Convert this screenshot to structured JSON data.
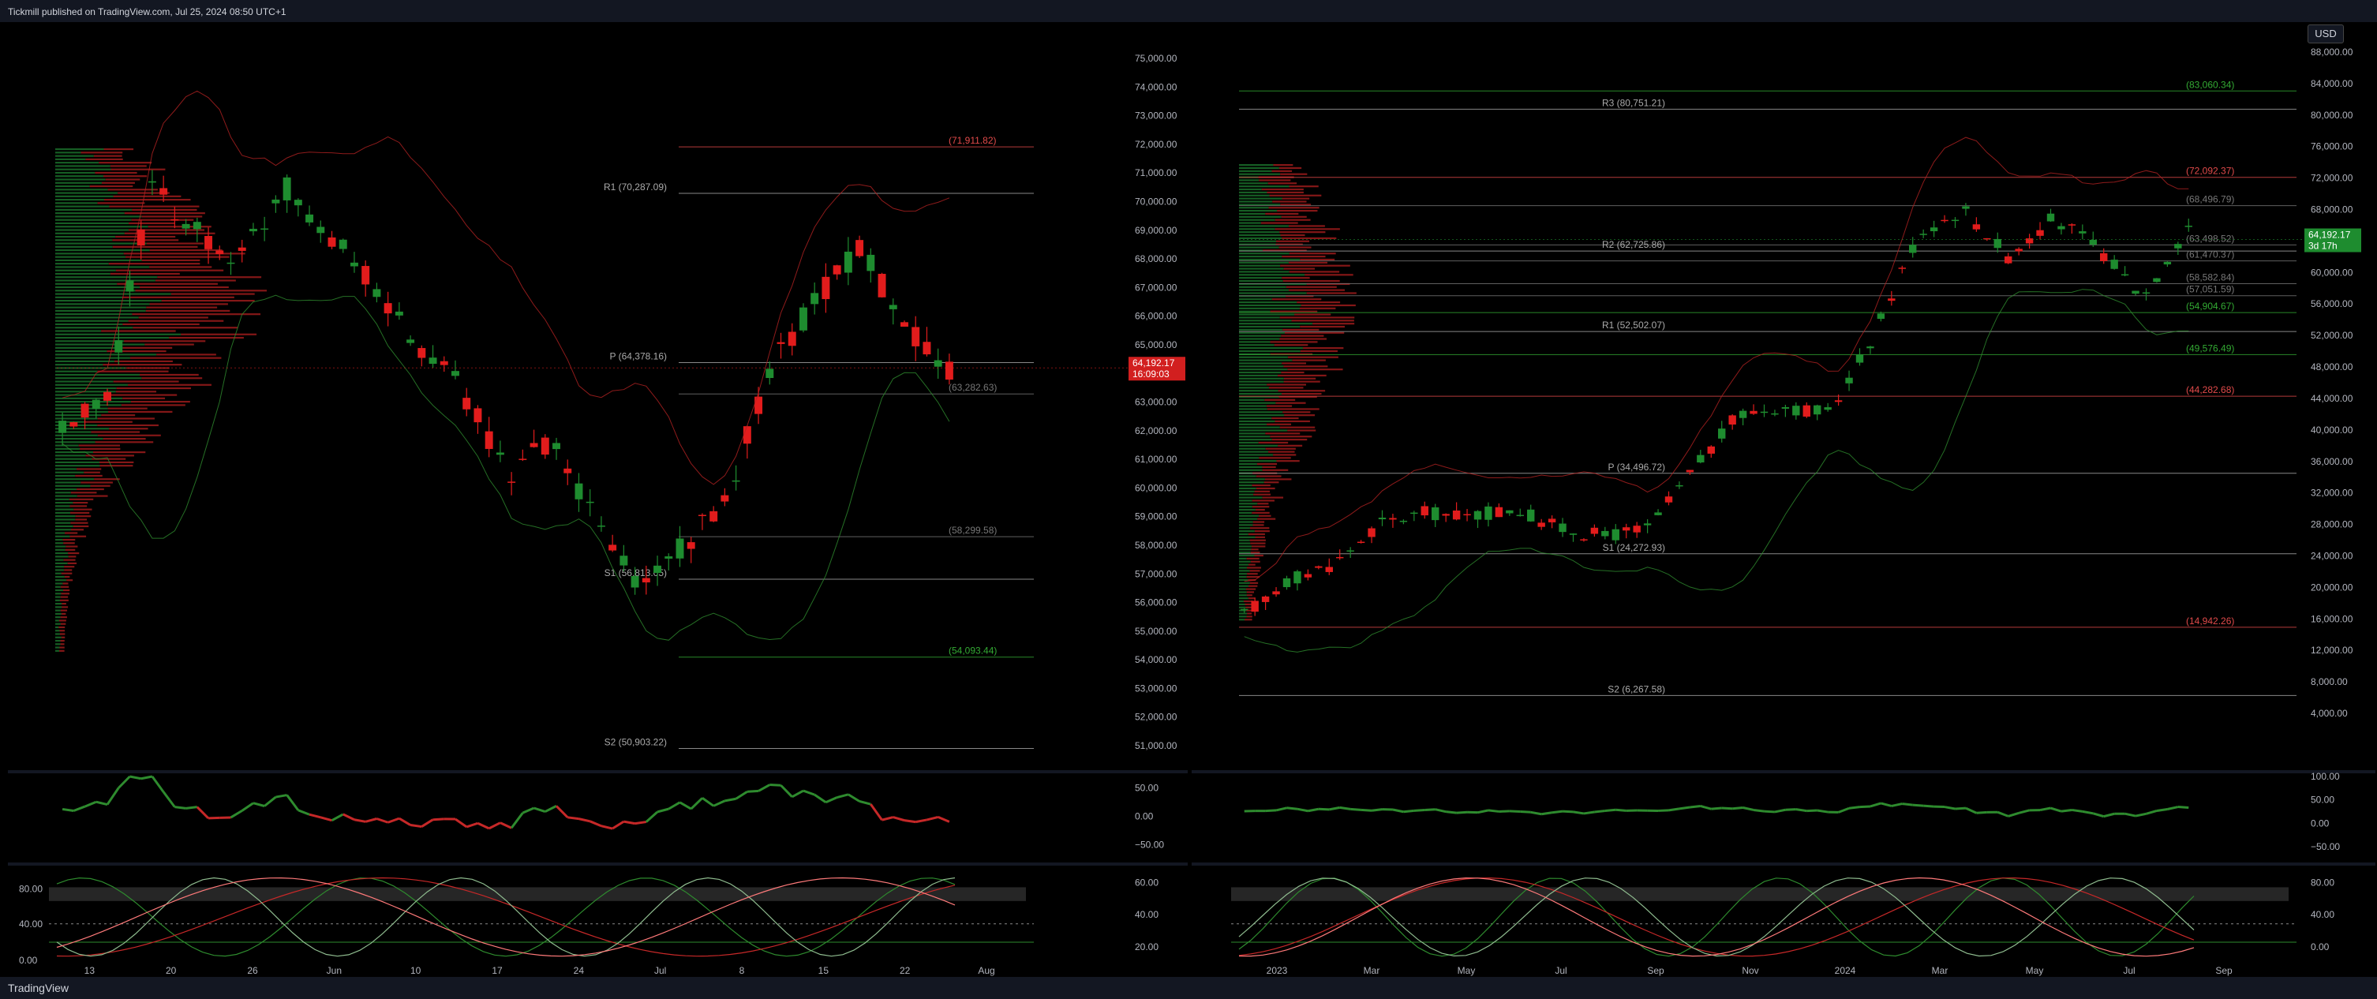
{
  "header": {
    "text": "Tickmill published on TradingView.com, Jul 25, 2024 08:50 UTC+1"
  },
  "footer": {
    "brand": "TradingView"
  },
  "currency_button": "USD",
  "colors": {
    "up": "#1e8c2f",
    "down": "#e21c1c",
    "bg": "#000000",
    "grid": "#1a1a1a",
    "axis_text": "#b2b5be"
  },
  "left": {
    "price_axis": [
      "75,000.00",
      "74,000.00",
      "73,000.00",
      "72,000.00",
      "71,000.00",
      "70,000.00",
      "69,000.00",
      "68,000.00",
      "67,000.00",
      "66,000.00",
      "65,000.00",
      "64,000.00",
      "63,000.00",
      "62,000.00",
      "61,000.00",
      "60,000.00",
      "59,000.00",
      "58,000.00",
      "57,000.00",
      "56,000.00",
      "55,000.00",
      "54,000.00",
      "53,000.00",
      "52,000.00",
      "51,000.00"
    ],
    "last_price": "64,192.17",
    "countdown": "16:09:03",
    "levels": [
      {
        "label": "(71,911.82)",
        "price": 71911.82,
        "color": "#e24a4a"
      },
      {
        "label": "R1 (70,287.09)",
        "price": 70287.09,
        "color": "#aaaaaa"
      },
      {
        "label": "P (64,378.16)",
        "price": 64378.16,
        "color": "#aaaaaa"
      },
      {
        "label": "(63,282.63)",
        "price": 63282.63,
        "color": "#777777"
      },
      {
        "label": "(58,299.58)",
        "price": 58299.58,
        "color": "#777777"
      },
      {
        "label": "S1 (56,813.05)",
        "price": 56813.05,
        "color": "#aaaaaa"
      },
      {
        "label": "(54,093.44)",
        "price": 54093.44,
        "color": "#33aa33"
      },
      {
        "label": "S2 (50,903.22)",
        "price": 50903.22,
        "color": "#aaaaaa"
      }
    ],
    "x_axis": [
      "13",
      "20",
      "26",
      "Jun",
      "10",
      "17",
      "24",
      "Jul",
      "8",
      "15",
      "22",
      "Aug"
    ],
    "rsi_axis": [
      "50.00",
      "0.00",
      "−50.00"
    ],
    "stoch_left_axis": [
      "80.00",
      "40.00",
      "0.00"
    ],
    "stoch_right_axis": [
      "60.00",
      "40.00",
      "20.00"
    ]
  },
  "right": {
    "price_axis": [
      "88,000.00",
      "84,000.00",
      "80,000.00",
      "76,000.00",
      "72,000.00",
      "68,000.00",
      "64,000.00",
      "60,000.00",
      "56,000.00",
      "52,000.00",
      "48,000.00",
      "44,000.00",
      "40,000.00",
      "36,000.00",
      "32,000.00",
      "28,000.00",
      "24,000.00",
      "20,000.00",
      "16,000.00",
      "12,000.00",
      "8,000.00",
      "4,000.00"
    ],
    "last_price": "64,192.17",
    "countdown": "3d 17h",
    "levels": [
      {
        "label": "(83,060.34)",
        "price": 83060.34,
        "color": "#33aa33"
      },
      {
        "label": "R3 (80,751.21)",
        "price": 80751.21,
        "color": "#aaaaaa"
      },
      {
        "label": "(72,092.37)",
        "price": 72092.37,
        "color": "#e24a4a"
      },
      {
        "label": "(68,496.79)",
        "price": 68496.79,
        "color": "#777777"
      },
      {
        "label": "(63,498.52)",
        "price": 63498.52,
        "color": "#777777"
      },
      {
        "label": "R2 (62,725.86)",
        "price": 62725.86,
        "color": "#aaaaaa"
      },
      {
        "label": "(61,470.37)",
        "price": 61470.37,
        "color": "#777777"
      },
      {
        "label": "(58,582.84)",
        "price": 58582.84,
        "color": "#777777"
      },
      {
        "label": "(57,051.59)",
        "price": 57051.59,
        "color": "#777777"
      },
      {
        "label": "(54,904.67)",
        "price": 54904.67,
        "color": "#33aa33"
      },
      {
        "label": "R1 (52,502.07)",
        "price": 52502.07,
        "color": "#aaaaaa"
      },
      {
        "label": "(49,576.49)",
        "price": 49576.49,
        "color": "#33aa33"
      },
      {
        "label": "(44,282.68)",
        "price": 44282.68,
        "color": "#e24a4a"
      },
      {
        "label": "P (34,496.72)",
        "price": 34496.72,
        "color": "#aaaaaa"
      },
      {
        "label": "S1 (24,272.93)",
        "price": 24272.93,
        "color": "#aaaaaa"
      },
      {
        "label": "(14,942.26)",
        "price": 14942.26,
        "color": "#e24a4a"
      },
      {
        "label": "S2 (6,267.58)",
        "price": 6267.58,
        "color": "#aaaaaa"
      }
    ],
    "x_axis": [
      "2023",
      "Mar",
      "May",
      "Jul",
      "Sep",
      "Nov",
      "2024",
      "Mar",
      "May",
      "Jul",
      "Sep"
    ],
    "rsi_axis": [
      "100.00",
      "50.00",
      "0.00",
      "−50.00"
    ],
    "stoch_axis": [
      "80.00",
      "40.00",
      "0.00"
    ]
  }
}
